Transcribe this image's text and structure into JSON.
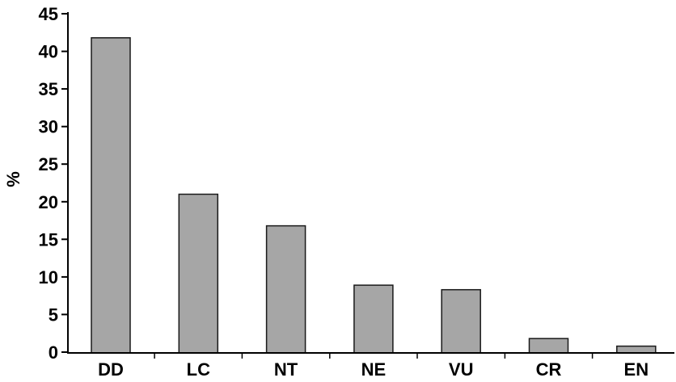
{
  "chart_data": {
    "type": "bar",
    "categories": [
      "DD",
      "LC",
      "NT",
      "NE",
      "VU",
      "CR",
      "EN"
    ],
    "values": [
      41.8,
      21.0,
      16.8,
      8.9,
      8.3,
      1.8,
      0.8
    ],
    "title": "",
    "xlabel": "",
    "ylabel": "%",
    "ylim": [
      0,
      45
    ],
    "yticks": [
      0,
      5,
      10,
      15,
      20,
      25,
      30,
      35,
      40,
      45
    ],
    "grid": false,
    "legend": "none",
    "bar_color": "#a6a6a6",
    "bar_edge_color": "#1a1a1a"
  }
}
